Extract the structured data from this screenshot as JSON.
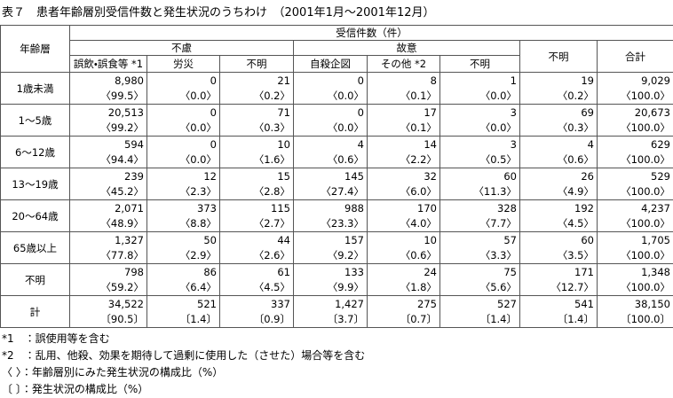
{
  "title": "表７　患者年齢層別受信件数と発生状況のうちわけ　（2001年1月～2001年12月）",
  "table": {
    "header": {
      "age": "年齢層",
      "group": "受信件数（件）",
      "accidental": "不慮",
      "intentional": "故意",
      "unknown": "不明",
      "total": "合計",
      "subcolumns": [
        "誤飲・誤食等 *1",
        "労災",
        "不明",
        "自殺企図",
        "その他 *2",
        "不明"
      ]
    },
    "rows": [
      {
        "label": "1歳未満",
        "counts": [
          "8,980",
          "0",
          "21",
          "0",
          "8",
          "1",
          "19",
          "9,029"
        ],
        "shares": [
          "〈99.5〉",
          "〈0.0〉",
          "〈0.2〉",
          "〈0.0〉",
          "〈0.1〉",
          "〈0.0〉",
          "〈0.2〉",
          "〈100.0〉"
        ]
      },
      {
        "label": "1～5歳",
        "counts": [
          "20,513",
          "0",
          "71",
          "0",
          "17",
          "3",
          "69",
          "20,673"
        ],
        "shares": [
          "〈99.2〉",
          "〈0.0〉",
          "〈0.3〉",
          "〈0.0〉",
          "〈0.1〉",
          "〈0.0〉",
          "〈0.3〉",
          "〈100.0〉"
        ]
      },
      {
        "label": "6～12歳",
        "counts": [
          "594",
          "0",
          "10",
          "4",
          "14",
          "3",
          "4",
          "629"
        ],
        "shares": [
          "〈94.4〉",
          "〈0.0〉",
          "〈1.6〉",
          "〈0.6〉",
          "〈2.2〉",
          "〈0.5〉",
          "〈0.6〉",
          "〈100.0〉"
        ]
      },
      {
        "label": "13～19歳",
        "counts": [
          "239",
          "12",
          "15",
          "145",
          "32",
          "60",
          "26",
          "529"
        ],
        "shares": [
          "〈45.2〉",
          "〈2.3〉",
          "〈2.8〉",
          "〈27.4〉",
          "〈6.0〉",
          "〈11.3〉",
          "〈4.9〉",
          "〈100.0〉"
        ]
      },
      {
        "label": "20～64歳",
        "counts": [
          "2,071",
          "373",
          "115",
          "988",
          "170",
          "328",
          "192",
          "4,237"
        ],
        "shares": [
          "〈48.9〉",
          "〈8.8〉",
          "〈2.7〉",
          "〈23.3〉",
          "〈4.0〉",
          "〈7.7〉",
          "〈4.5〉",
          "〈100.0〉"
        ]
      },
      {
        "label": "65歳以上",
        "counts": [
          "1,327",
          "50",
          "44",
          "157",
          "10",
          "57",
          "60",
          "1,705"
        ],
        "shares": [
          "〈77.8〉",
          "〈2.9〉",
          "〈2.6〉",
          "〈9.2〉",
          "〈0.6〉",
          "〈3.3〉",
          "〈3.5〉",
          "〈100.0〉"
        ]
      },
      {
        "label": "不明",
        "counts": [
          "798",
          "86",
          "61",
          "133",
          "24",
          "75",
          "171",
          "1,348"
        ],
        "shares": [
          "〈59.2〉",
          "〈6.4〉",
          "〈4.5〉",
          "〈9.9〉",
          "〈1.8〉",
          "〈5.6〉",
          "〈12.7〉",
          "〈100.0〉"
        ]
      },
      {
        "label": "計",
        "counts": [
          "34,522",
          "521",
          "337",
          "1,427",
          "275",
          "527",
          "541",
          "38,150"
        ],
        "shares": [
          "〔90.5〕",
          "〔1.4〕",
          "〔0.9〕",
          "〔3.7〕",
          "〔0.7〕",
          "〔1.4〕",
          "〔1.4〕",
          "〔100.0〕"
        ]
      }
    ]
  },
  "notes": [
    "*1　：誤使用等を含む",
    "*2　：乱用、他殺、効果を期待して過剰に使用した（させた）場合等を含む",
    "〈 〉：年齢層別にみた発生状況の構成比（%）",
    "〔 〕：発生状況の構成比（%）"
  ]
}
